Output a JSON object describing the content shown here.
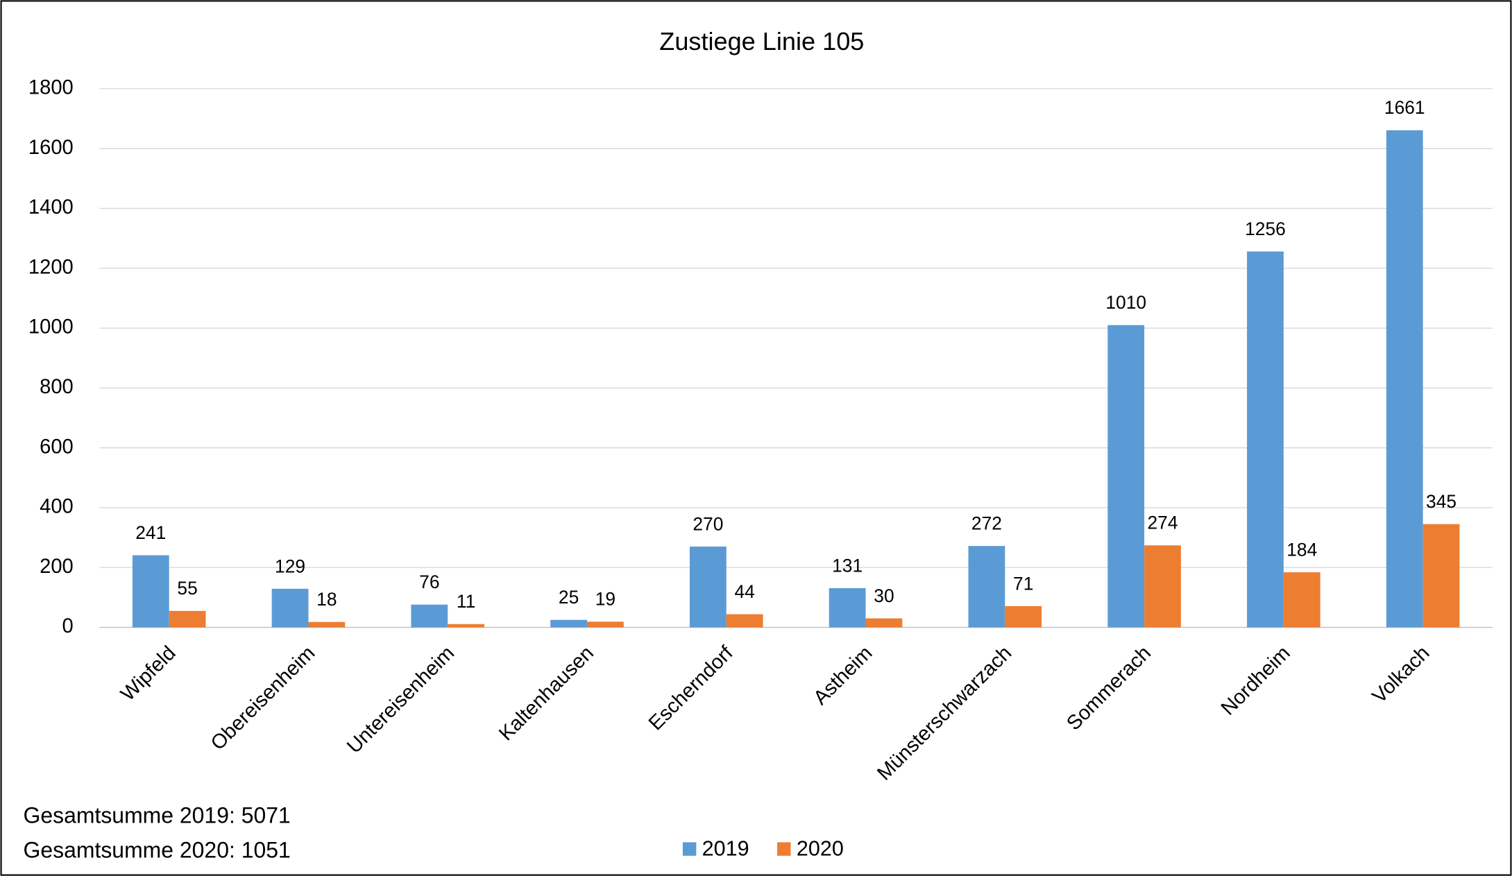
{
  "chart_data": {
    "type": "bar",
    "title": "Zustiege Linie 105",
    "categories": [
      "Wipfeld",
      "Obereisenheim",
      "Untereisenheim",
      "Kaltenhausen",
      "Escherndorf",
      "Astheim",
      "Münsterschwarzach",
      "Sommerach",
      "Nordheim",
      "Volkach"
    ],
    "series": [
      {
        "name": "2019",
        "color": "#5b9bd5",
        "values": [
          241,
          129,
          76,
          25,
          270,
          131,
          272,
          1010,
          1256,
          1661
        ]
      },
      {
        "name": "2020",
        "color": "#ed7d31",
        "values": [
          55,
          18,
          11,
          19,
          44,
          30,
          71,
          274,
          184,
          345
        ]
      }
    ],
    "ylim": [
      0,
      1800
    ],
    "yticks": [
      0,
      200,
      400,
      600,
      800,
      1000,
      1200,
      1400,
      1600,
      1800
    ],
    "grid": true,
    "legend": "bottom",
    "annotations": [
      "Gesamtsumme 2019: 5071",
      "Gesamtsumme 2020: 1051"
    ]
  }
}
